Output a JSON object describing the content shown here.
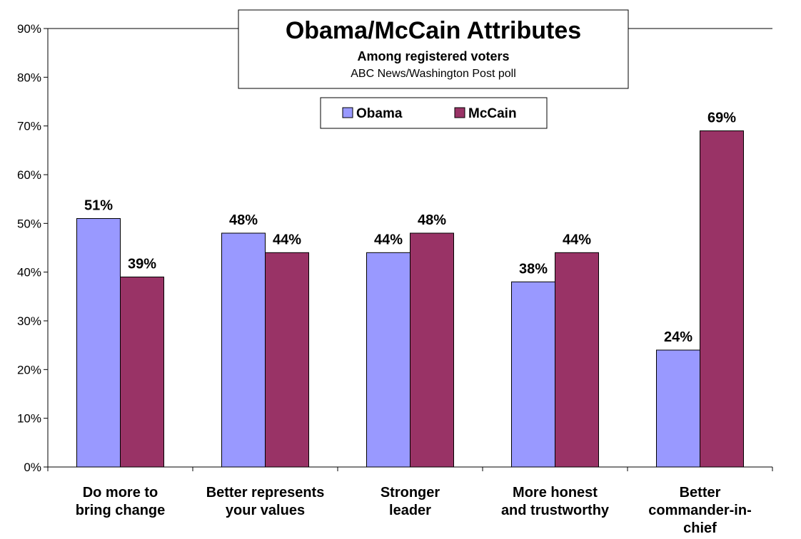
{
  "chart_data": {
    "type": "bar",
    "title": "Obama/McCain Attributes",
    "subtitle": "Among registered voters",
    "source": "ABC News/Washington Post poll",
    "categories": [
      "Do more to bring change",
      "Better represents your values",
      "Stronger leader",
      "More honest and trustworthy",
      "Better commander-in-chief"
    ],
    "category_lines": [
      [
        "Do more to",
        "bring change"
      ],
      [
        "Better represents",
        "your values"
      ],
      [
        "Stronger",
        "leader"
      ],
      [
        "More honest",
        "and trustworthy"
      ],
      [
        "Better",
        "commander-in-",
        "chief"
      ]
    ],
    "series": [
      {
        "name": "Obama",
        "color": "#9999FF",
        "values": [
          51,
          48,
          44,
          38,
          24
        ],
        "labels": [
          "51%",
          "48%",
          "44%",
          "38%",
          "24%"
        ]
      },
      {
        "name": "McCain",
        "color": "#993366",
        "values": [
          39,
          44,
          48,
          44,
          69
        ],
        "labels": [
          "39%",
          "44%",
          "48%",
          "44%",
          "69%"
        ]
      }
    ],
    "ylim": [
      0,
      90
    ],
    "yticks": [
      0,
      10,
      20,
      30,
      40,
      50,
      60,
      70,
      80,
      90
    ],
    "ytick_labels": [
      "0%",
      "10%",
      "20%",
      "30%",
      "40%",
      "50%",
      "60%",
      "70%",
      "80%",
      "90%"
    ],
    "grid": false,
    "legend_position": "top-center",
    "xlabel": "",
    "ylabel": ""
  }
}
